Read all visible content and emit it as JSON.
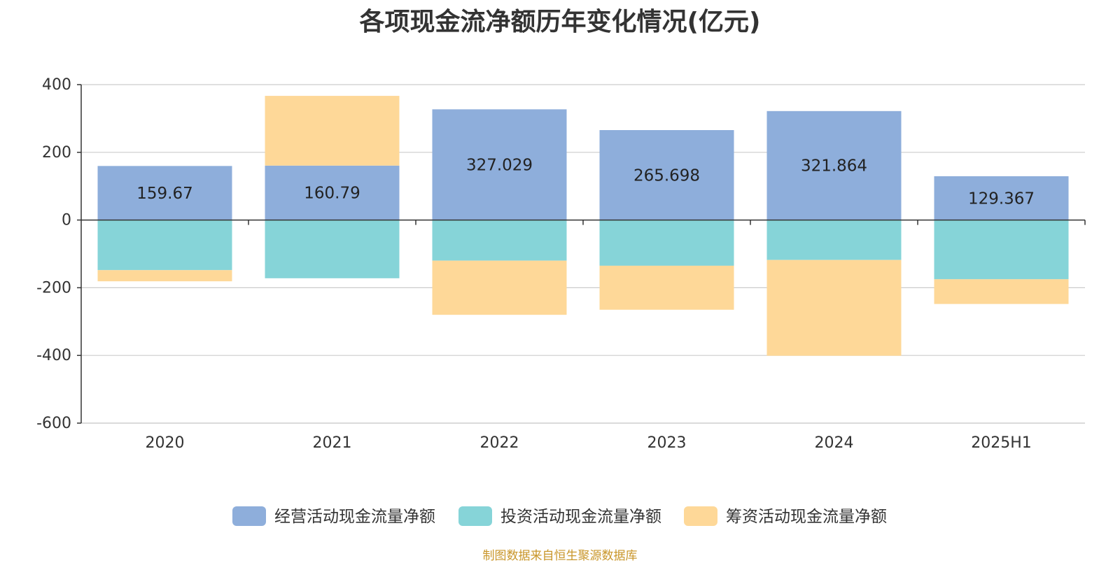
{
  "chart_data": {
    "type": "bar",
    "stacked": true,
    "title": "各项现金流净额历年变化情况(亿元)",
    "categories": [
      "2020",
      "2021",
      "2022",
      "2023",
      "2024",
      "2025H1"
    ],
    "series": [
      {
        "name": "经营活动现金流量净额",
        "color": "#8eaedb",
        "values": [
          159.67,
          160.79,
          327.029,
          265.698,
          321.864,
          129.367
        ]
      },
      {
        "name": "投资活动现金流量净额",
        "color": "#86d4d8",
        "values": [
          -148,
          -172,
          -120,
          -135,
          -118,
          -175
        ]
      },
      {
        "name": "筹资活动现金流量净额",
        "color": "#fed898",
        "values": [
          -33,
          206,
          -160,
          -130,
          -283,
          -73
        ]
      }
    ],
    "data_labels": [
      "159.67",
      "160.79",
      "327.029",
      "265.698",
      "321.864",
      "129.367"
    ],
    "y_ticks": [
      "400",
      "200",
      "0",
      "-200",
      "-400",
      "-600"
    ],
    "ylim": [
      -600,
      400
    ],
    "grid": true,
    "legend_position": "bottom"
  },
  "source_note": "制图数据来自恒生聚源数据库"
}
